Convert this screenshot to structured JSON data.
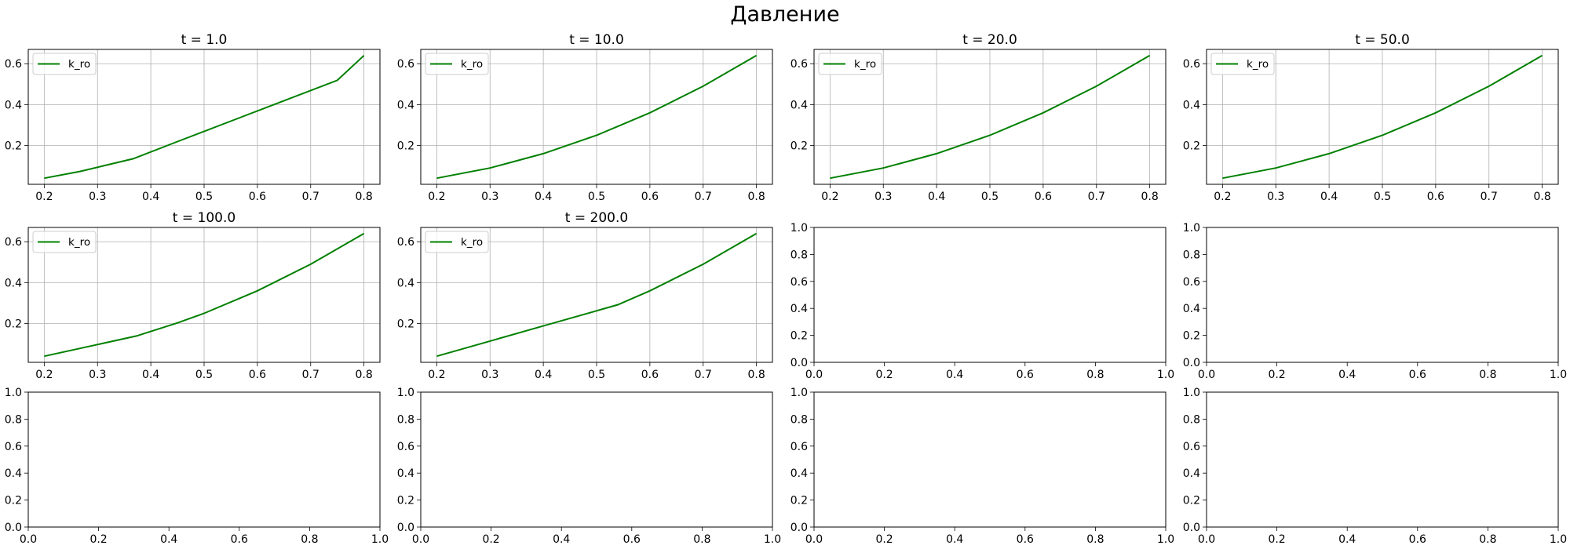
{
  "figure": {
    "title": "Давление",
    "line_color": "#008000"
  },
  "chart_data": [
    {
      "type": "line",
      "title": "t = 1.0",
      "series": [
        {
          "name": "k_ro",
          "x": [
            0.2,
            0.267,
            0.367,
            0.45,
            0.55,
            0.65,
            0.75,
            0.8
          ],
          "y": [
            0.04,
            0.073,
            0.135,
            0.219,
            0.319,
            0.419,
            0.519,
            0.64
          ]
        }
      ],
      "xlim": [
        0.17,
        0.83
      ],
      "ylim": [
        0.01,
        0.67
      ],
      "xticks": [
        "0.2",
        "0.3",
        "0.4",
        "0.5",
        "0.6",
        "0.7",
        "0.8"
      ],
      "yticks": [
        "0.2",
        "0.4",
        "0.6"
      ],
      "grid": true,
      "legend": "upper left"
    },
    {
      "type": "line",
      "title": "t = 10.0",
      "series": [
        {
          "name": "k_ro",
          "x": [
            0.2,
            0.3,
            0.4,
            0.5,
            0.6,
            0.7,
            0.8
          ],
          "y": [
            0.04,
            0.09,
            0.16,
            0.25,
            0.36,
            0.49,
            0.64
          ]
        }
      ],
      "xlim": [
        0.17,
        0.83
      ],
      "ylim": [
        0.01,
        0.67
      ],
      "xticks": [
        "0.2",
        "0.3",
        "0.4",
        "0.5",
        "0.6",
        "0.7",
        "0.8"
      ],
      "yticks": [
        "0.2",
        "0.4",
        "0.6"
      ],
      "grid": true,
      "legend": "upper left"
    },
    {
      "type": "line",
      "title": "t = 20.0",
      "series": [
        {
          "name": "k_ro",
          "x": [
            0.2,
            0.3,
            0.4,
            0.5,
            0.6,
            0.7,
            0.8
          ],
          "y": [
            0.04,
            0.09,
            0.16,
            0.25,
            0.36,
            0.49,
            0.64
          ]
        }
      ],
      "xlim": [
        0.17,
        0.83
      ],
      "ylim": [
        0.01,
        0.67
      ],
      "xticks": [
        "0.2",
        "0.3",
        "0.4",
        "0.5",
        "0.6",
        "0.7",
        "0.8"
      ],
      "yticks": [
        "0.2",
        "0.4",
        "0.6"
      ],
      "grid": true,
      "legend": "upper left"
    },
    {
      "type": "line",
      "title": "t = 50.0",
      "series": [
        {
          "name": "k_ro",
          "x": [
            0.2,
            0.3,
            0.4,
            0.5,
            0.6,
            0.7,
            0.8
          ],
          "y": [
            0.04,
            0.09,
            0.16,
            0.25,
            0.36,
            0.49,
            0.64
          ]
        }
      ],
      "xlim": [
        0.17,
        0.83
      ],
      "ylim": [
        0.01,
        0.67
      ],
      "xticks": [
        "0.2",
        "0.3",
        "0.4",
        "0.5",
        "0.6",
        "0.7",
        "0.8"
      ],
      "yticks": [
        "0.2",
        "0.4",
        "0.6"
      ],
      "grid": true,
      "legend": "upper left"
    },
    {
      "type": "line",
      "title": "t = 100.0",
      "series": [
        {
          "name": "k_ro",
          "x": [
            0.2,
            0.3,
            0.373,
            0.45,
            0.5,
            0.6,
            0.7,
            0.8
          ],
          "y": [
            0.04,
            0.097,
            0.139,
            0.203,
            0.25,
            0.36,
            0.49,
            0.64
          ]
        }
      ],
      "xlim": [
        0.17,
        0.83
      ],
      "ylim": [
        0.01,
        0.67
      ],
      "xticks": [
        "0.2",
        "0.3",
        "0.4",
        "0.5",
        "0.6",
        "0.7",
        "0.8"
      ],
      "yticks": [
        "0.2",
        "0.4",
        "0.6"
      ],
      "grid": true,
      "legend": "upper left"
    },
    {
      "type": "line",
      "title": "t = 200.0",
      "series": [
        {
          "name": "k_ro",
          "x": [
            0.2,
            0.3,
            0.4,
            0.5,
            0.54,
            0.6,
            0.7,
            0.8
          ],
          "y": [
            0.04,
            0.114,
            0.188,
            0.262,
            0.292,
            0.36,
            0.49,
            0.64
          ]
        }
      ],
      "xlim": [
        0.17,
        0.83
      ],
      "ylim": [
        0.01,
        0.67
      ],
      "xticks": [
        "0.2",
        "0.3",
        "0.4",
        "0.5",
        "0.6",
        "0.7",
        "0.8"
      ],
      "yticks": [
        "0.2",
        "0.4",
        "0.6"
      ],
      "grid": true,
      "legend": "upper left"
    },
    {
      "type": "line",
      "series": [],
      "xlim": [
        0,
        1
      ],
      "ylim": [
        0,
        1
      ],
      "xticks": [
        "0.0",
        "0.2",
        "0.4",
        "0.6",
        "0.8",
        "1.0"
      ],
      "yticks": [
        "0.0",
        "0.2",
        "0.4",
        "0.6",
        "0.8",
        "1.0"
      ],
      "grid": false
    },
    {
      "type": "line",
      "series": [],
      "xlim": [
        0,
        1
      ],
      "ylim": [
        0,
        1
      ],
      "xticks": [
        "0.0",
        "0.2",
        "0.4",
        "0.6",
        "0.8",
        "1.0"
      ],
      "yticks": [
        "0.0",
        "0.2",
        "0.4",
        "0.6",
        "0.8",
        "1.0"
      ],
      "grid": false
    },
    {
      "type": "line",
      "series": [],
      "xlim": [
        0,
        1
      ],
      "ylim": [
        0,
        1
      ],
      "xticks": [
        "0.0",
        "0.2",
        "0.4",
        "0.6",
        "0.8",
        "1.0"
      ],
      "yticks": [
        "0.0",
        "0.2",
        "0.4",
        "0.6",
        "0.8",
        "1.0"
      ],
      "grid": false
    },
    {
      "type": "line",
      "series": [],
      "xlim": [
        0,
        1
      ],
      "ylim": [
        0,
        1
      ],
      "xticks": [
        "0.0",
        "0.2",
        "0.4",
        "0.6",
        "0.8",
        "1.0"
      ],
      "yticks": [
        "0.0",
        "0.2",
        "0.4",
        "0.6",
        "0.8",
        "1.0"
      ],
      "grid": false
    },
    {
      "type": "line",
      "series": [],
      "xlim": [
        0,
        1
      ],
      "ylim": [
        0,
        1
      ],
      "xticks": [
        "0.0",
        "0.2",
        "0.4",
        "0.6",
        "0.8",
        "1.0"
      ],
      "yticks": [
        "0.0",
        "0.2",
        "0.4",
        "0.6",
        "0.8",
        "1.0"
      ],
      "grid": false
    },
    {
      "type": "line",
      "series": [],
      "xlim": [
        0,
        1
      ],
      "ylim": [
        0,
        1
      ],
      "xticks": [
        "0.0",
        "0.2",
        "0.4",
        "0.6",
        "0.8",
        "1.0"
      ],
      "yticks": [
        "0.0",
        "0.2",
        "0.4",
        "0.6",
        "0.8",
        "1.0"
      ],
      "grid": false
    }
  ]
}
